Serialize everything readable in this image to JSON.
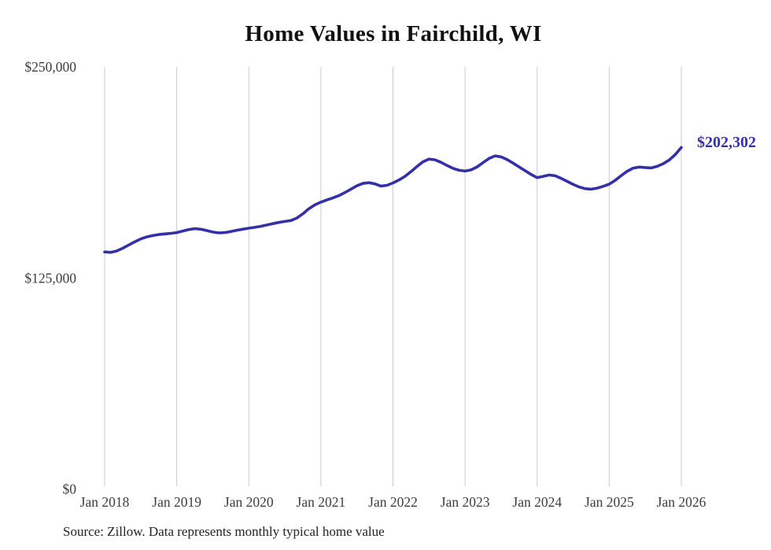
{
  "chart_data": {
    "type": "line",
    "title": "Home Values in Fairchild, WI",
    "source": "Source: Zillow. Data represents monthly typical home value",
    "x_unit": "month",
    "x_range": [
      "Jan 2018",
      "Jan 2026"
    ],
    "x_ticks": [
      "Jan 2018",
      "Jan 2019",
      "Jan 2020",
      "Jan 2021",
      "Jan 2022",
      "Jan 2023",
      "Jan 2024",
      "Jan 2025",
      "Jan 2026"
    ],
    "x_tick_month_indices": [
      0,
      12,
      24,
      36,
      48,
      60,
      72,
      84,
      96
    ],
    "y_ticks": [
      {
        "value": 0,
        "label": "$0"
      },
      {
        "value": 125000,
        "label": "$125,000"
      },
      {
        "value": 250000,
        "label": "$250,000"
      }
    ],
    "ylim": [
      0,
      250000
    ],
    "grid": "vertical-only",
    "legend": "none",
    "end_label": "$202,302",
    "latest_value": 202302,
    "series": [
      {
        "name": "Typical home value",
        "values": [
          140400,
          140200,
          141000,
          142600,
          144500,
          146400,
          148100,
          149300,
          150100,
          150700,
          151100,
          151400,
          151900,
          152800,
          153700,
          154200,
          153900,
          153100,
          152200,
          151700,
          151900,
          152500,
          153300,
          153900,
          154500,
          155000,
          155600,
          156400,
          157200,
          157900,
          158500,
          159000,
          160500,
          163000,
          166000,
          168300,
          169900,
          171200,
          172400,
          173800,
          175600,
          177600,
          179600,
          181000,
          181400,
          180700,
          179400,
          179900,
          181300,
          183000,
          185200,
          188000,
          191000,
          193800,
          195400,
          195000,
          193500,
          191600,
          189900,
          188800,
          188300,
          189000,
          190800,
          193300,
          195800,
          197300,
          196700,
          195100,
          193000,
          190800,
          188500,
          186300,
          184400,
          185200,
          186000,
          185500,
          184000,
          182200,
          180400,
          178900,
          177900,
          177600,
          178200,
          179300,
          180600,
          182800,
          185600,
          188200,
          190100,
          190700,
          190400,
          190200,
          191100,
          192700,
          194900,
          198100,
          202302
        ]
      }
    ],
    "colors": {
      "line": "#3431a8",
      "grid": "#cccccc",
      "title": "#111111",
      "axis_text": "#3d3d3d",
      "end_label": "#3431a8",
      "source_text": "#222222",
      "background": "#ffffff"
    }
  }
}
